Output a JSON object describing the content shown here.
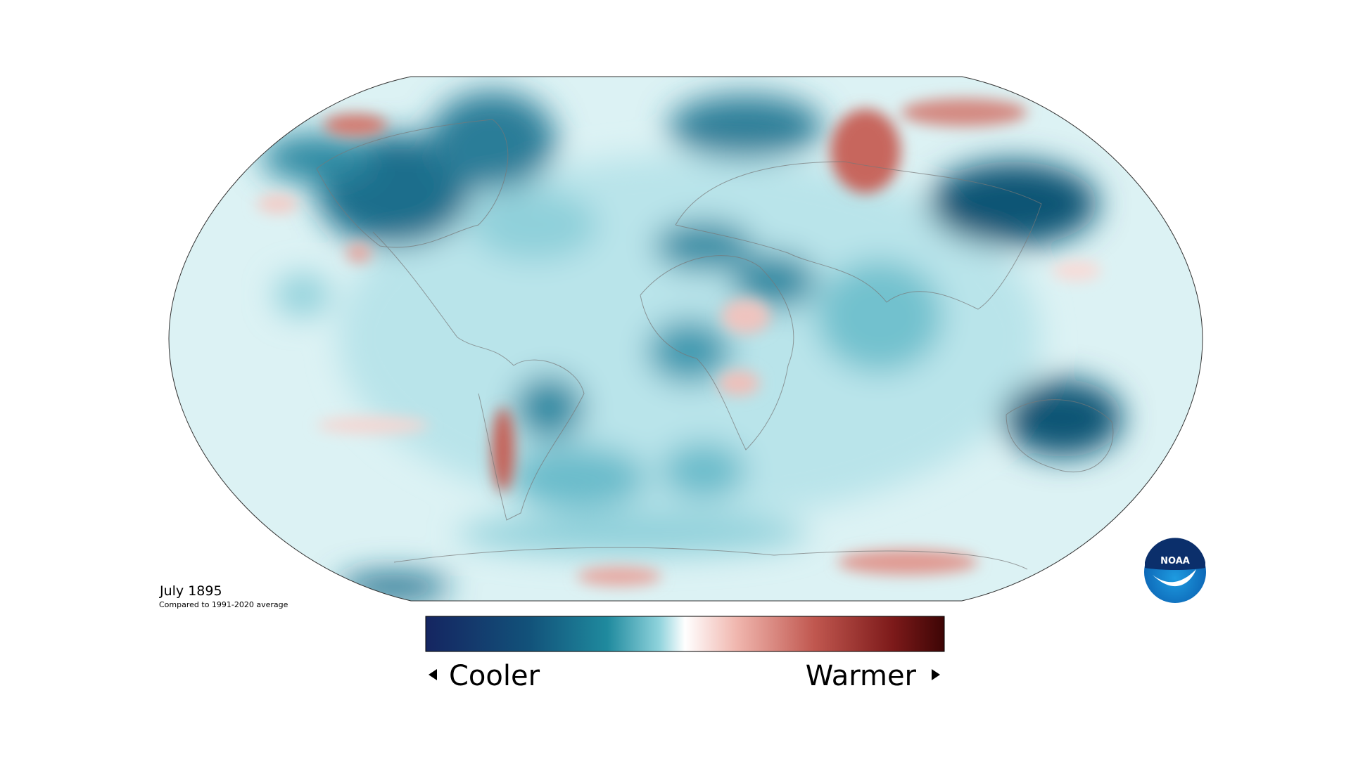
{
  "title": "July 1895",
  "subtitle": "Compared to 1991-2020 average",
  "legend": {
    "low_label": "Cooler",
    "high_label": "Warmer"
  },
  "logo": {
    "text": "NOAA"
  }
}
